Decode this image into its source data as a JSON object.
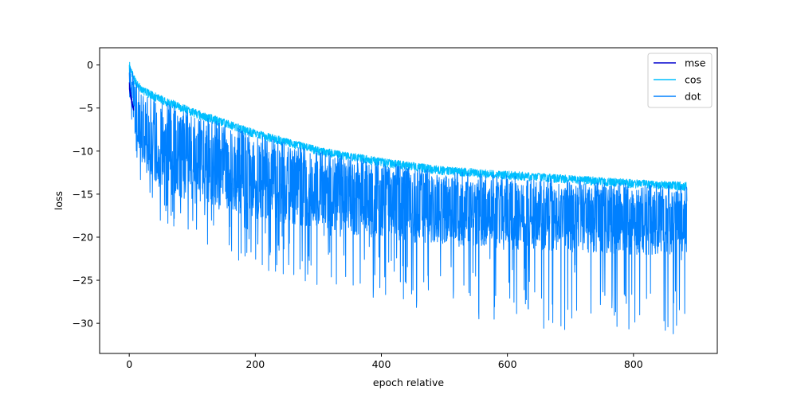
{
  "chart_data": {
    "type": "line",
    "title": "",
    "xlabel": "epoch relative",
    "ylabel": "loss",
    "xlim": [
      -47,
      933
    ],
    "ylim": [
      -33.5,
      2.0
    ],
    "x_ticks": [
      0,
      200,
      400,
      600,
      800
    ],
    "y_ticks": [
      0,
      -5,
      -10,
      -15,
      -20,
      -25,
      -30
    ],
    "x_tick_labels": [
      "0",
      "200",
      "400",
      "600",
      "800"
    ],
    "y_tick_labels": [
      "0",
      "−5",
      "−10",
      "−15",
      "−20",
      "−25",
      "−30"
    ],
    "grid": false,
    "legend_position": "upper right",
    "series": [
      {
        "name": "mse",
        "color": "#0000cd",
        "x": [
          0,
          1,
          2,
          3,
          4,
          5,
          6,
          7
        ],
        "y_upper": [
          -2.0,
          -2.5,
          -3.0,
          -3.5,
          -3.8,
          -4.2,
          -4.6,
          -4.8
        ],
        "y_lower": [
          -2.8,
          -3.3,
          -3.8,
          -4.2,
          -4.6,
          -4.9,
          -5.1,
          -5.3
        ]
      },
      {
        "name": "cos",
        "color": "#00bfff",
        "x": [
          0,
          10,
          20,
          50,
          100,
          200,
          300,
          400,
          500,
          600,
          700,
          800,
          885
        ],
        "y_upper": [
          0.5,
          -1.5,
          -2.5,
          -3.5,
          -5.0,
          -7.5,
          -9.5,
          -10.8,
          -11.8,
          -12.3,
          -12.8,
          -13.3,
          -13.6
        ],
        "y_lower": [
          -1.0,
          -2.5,
          -3.5,
          -4.5,
          -6.0,
          -8.5,
          -10.5,
          -11.8,
          -12.8,
          -13.3,
          -13.8,
          -14.3,
          -14.6
        ]
      },
      {
        "name": "dot",
        "color": "#0080ff",
        "x": [
          0,
          10,
          20,
          50,
          100,
          200,
          300,
          400,
          500,
          600,
          700,
          800,
          885
        ],
        "y_upper": [
          0.2,
          -1.5,
          -3.0,
          -4.0,
          -5.5,
          -8.0,
          -10.0,
          -11.2,
          -12.3,
          -12.8,
          -13.3,
          -13.8,
          -14.0
        ],
        "y_lower": [
          -3.5,
          -8.0,
          -12.0,
          -15.0,
          -16.0,
          -17.8,
          -19.0,
          -20.2,
          -21.0,
          -21.5,
          -21.8,
          -22.0,
          -22.0
        ],
        "y_spike_min": [
          -4.0,
          -10.0,
          -14.5,
          -18.5,
          -20.5,
          -23.5,
          -26.0,
          -27.5,
          -29.0,
          -30.0,
          -31.0,
          -31.5,
          -31.5
        ]
      }
    ]
  }
}
